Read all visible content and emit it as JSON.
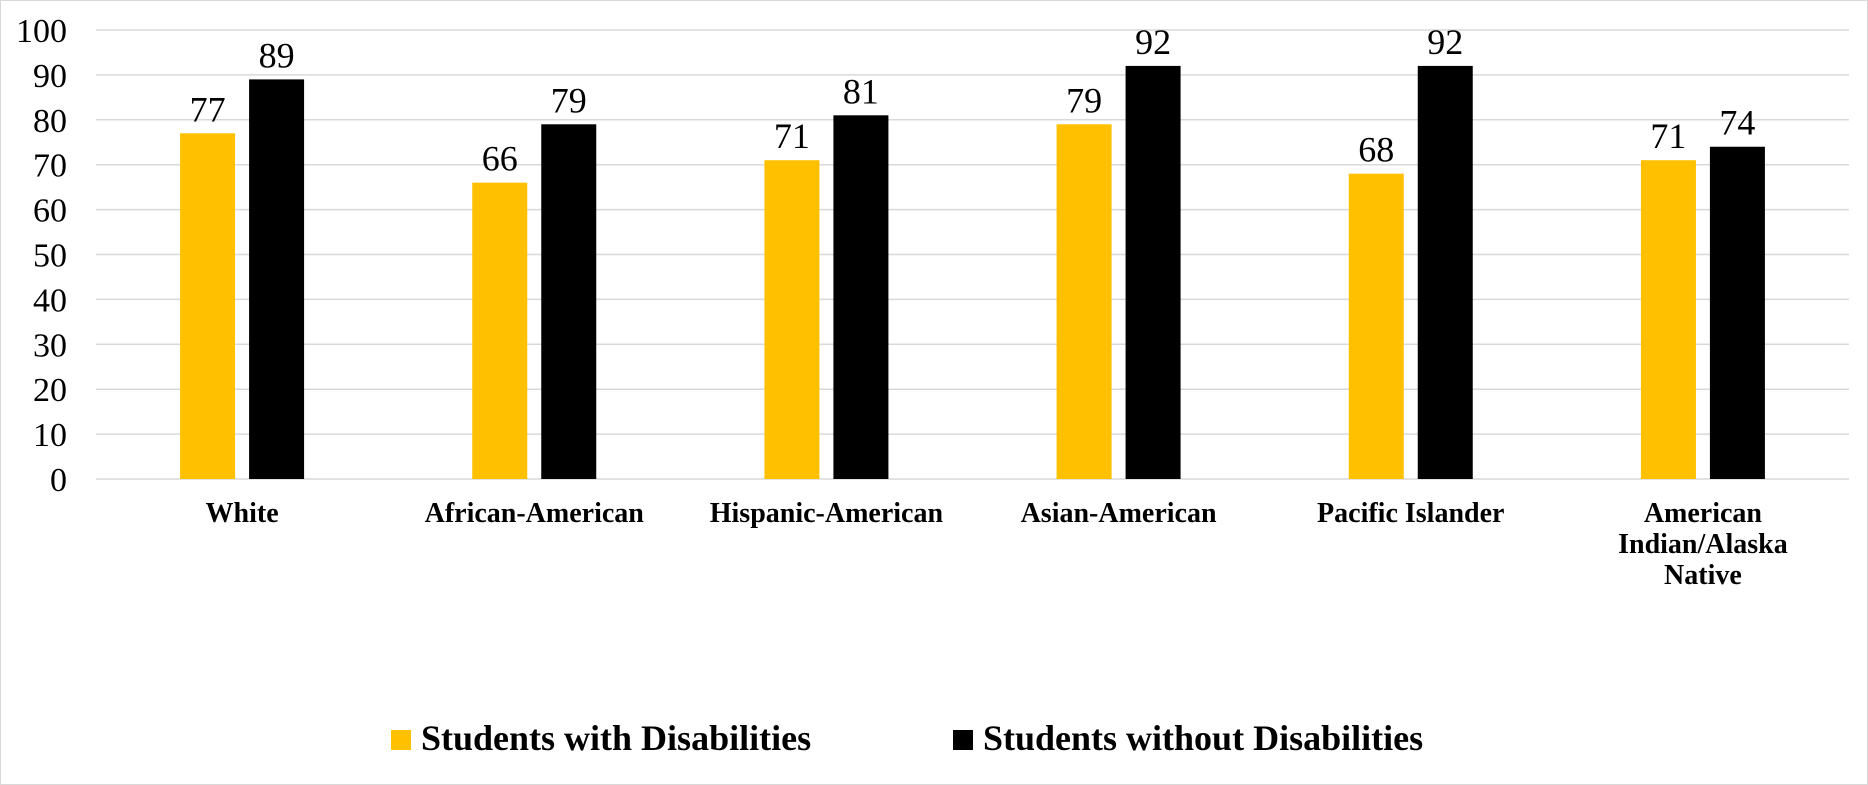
{
  "chart_data": {
    "type": "bar",
    "categories": [
      [
        "White"
      ],
      [
        "African-American"
      ],
      [
        "Hispanic-American"
      ],
      [
        "Asian-American"
      ],
      [
        "Pacific Islander"
      ],
      [
        "American",
        "Indian/Alaska",
        "Native"
      ]
    ],
    "series": [
      {
        "name": "Students with Disabilities",
        "values": [
          77,
          66,
          71,
          79,
          68,
          71
        ],
        "color": "#FFC000"
      },
      {
        "name": "Students without Disabilities",
        "values": [
          89,
          79,
          81,
          92,
          92,
          74
        ],
        "color": "#000000"
      }
    ],
    "title": "",
    "xlabel": "",
    "ylabel": "",
    "ylim": [
      0,
      100
    ],
    "yticks": [
      "0",
      "10",
      "20",
      "30",
      "40",
      "50",
      "60",
      "70",
      "80",
      "90",
      "100"
    ],
    "grid": true,
    "gridColor": "#d9d9d9",
    "legend": "bottom-center",
    "dataLabels": true
  }
}
